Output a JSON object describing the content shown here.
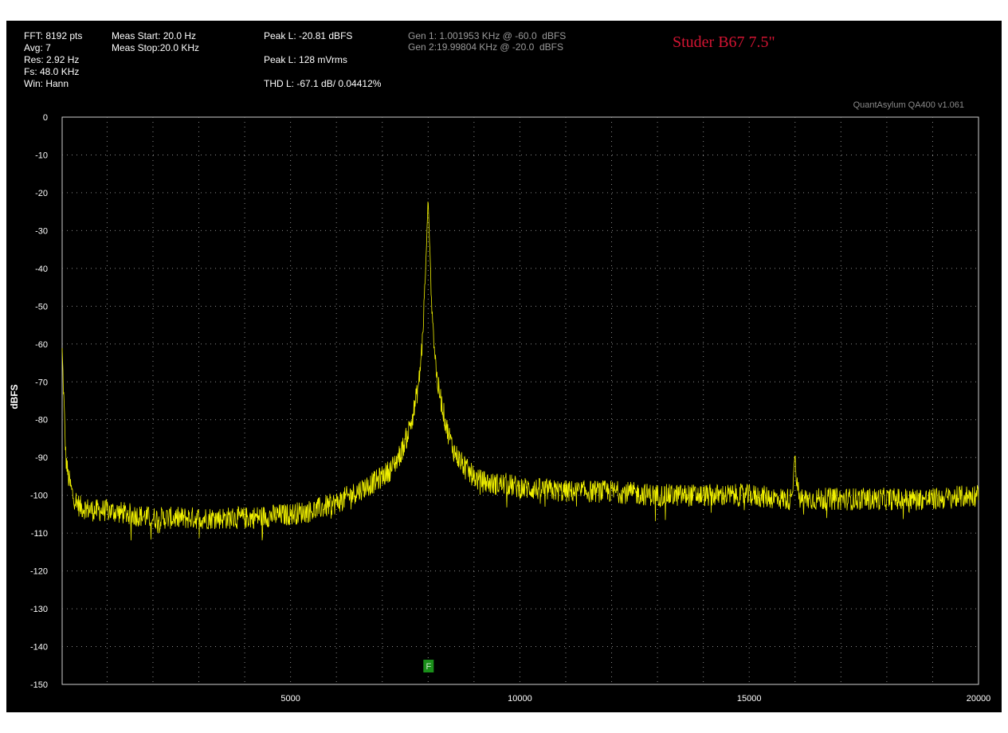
{
  "header": {
    "fft": "FFT: 8192 pts",
    "avg": "Avg: 7",
    "res": "Res: 2.92 Hz",
    "fs": "Fs: 48.0 KHz",
    "win": "Win: Hann",
    "meas_start": "Meas Start: 20.0 Hz",
    "meas_stop": "Meas Stop:20.0 KHz",
    "peak_dbfs": "Peak L: -20.81 dBFS",
    "peak_vrms": "Peak L: 128 mVrms",
    "thd": "THD L: -67.1 dB/ 0.04412%",
    "gen1": "Gen 1: 1.001953 KHz @ -60.0  dBFS",
    "gen2": "Gen 2:19.99804 KHz @ -20.0  dBFS"
  },
  "watermark": "QuantAsylum QA400 v1.061",
  "marker_label": "F",
  "colors": {
    "trace": "#f0f000",
    "grid": "#8c8c8c",
    "marker": "#1a8f1a",
    "title": "#d21432"
  },
  "chart_data": {
    "type": "line",
    "title": "Studer B67 7.5\"",
    "xlabel": "",
    "ylabel": "dBFS",
    "xlim": [
      20,
      20000
    ],
    "ylim": [
      -150,
      0
    ],
    "x_ticks": [
      5000,
      10000,
      15000,
      20000
    ],
    "y_ticks": [
      0,
      -10,
      -20,
      -30,
      -40,
      -50,
      -60,
      -70,
      -80,
      -90,
      -100,
      -110,
      -120,
      -130,
      -140,
      -150
    ],
    "grid": true,
    "marker_x": 8000,
    "series": [
      {
        "x": [
          20,
          60,
          100,
          150,
          250,
          400,
          700,
          1000,
          1500,
          2000,
          3000,
          4000,
          5000,
          5500,
          6000,
          6300,
          6600,
          6900,
          7200,
          7400,
          7550,
          7700,
          7800,
          7870,
          7930,
          7970,
          8000,
          8030,
          8070,
          8130,
          8200,
          8300,
          8400,
          8550,
          8700,
          8900,
          9100,
          9400,
          9700,
          10000,
          11000,
          12000,
          13000,
          14000,
          15000,
          15800,
          15900,
          15960,
          16000,
          16020,
          16100,
          16300,
          17000,
          18000,
          19000,
          20000
        ],
        "y": [
          -62,
          -76,
          -90,
          -95,
          -100,
          -103,
          -104,
          -104,
          -105,
          -106,
          -106,
          -106,
          -105,
          -104,
          -102,
          -100,
          -98,
          -96,
          -93,
          -89,
          -84,
          -77,
          -70,
          -60,
          -45,
          -32,
          -21,
          -33,
          -46,
          -60,
          -70,
          -76,
          -82,
          -88,
          -91,
          -94,
          -96,
          -97,
          -97,
          -98,
          -99,
          -99,
          -100,
          -100,
          -100,
          -101,
          -101,
          -96,
          -88,
          -96,
          -101,
          -101,
          -101,
          -101,
          -101,
          -100
        ]
      }
    ]
  }
}
